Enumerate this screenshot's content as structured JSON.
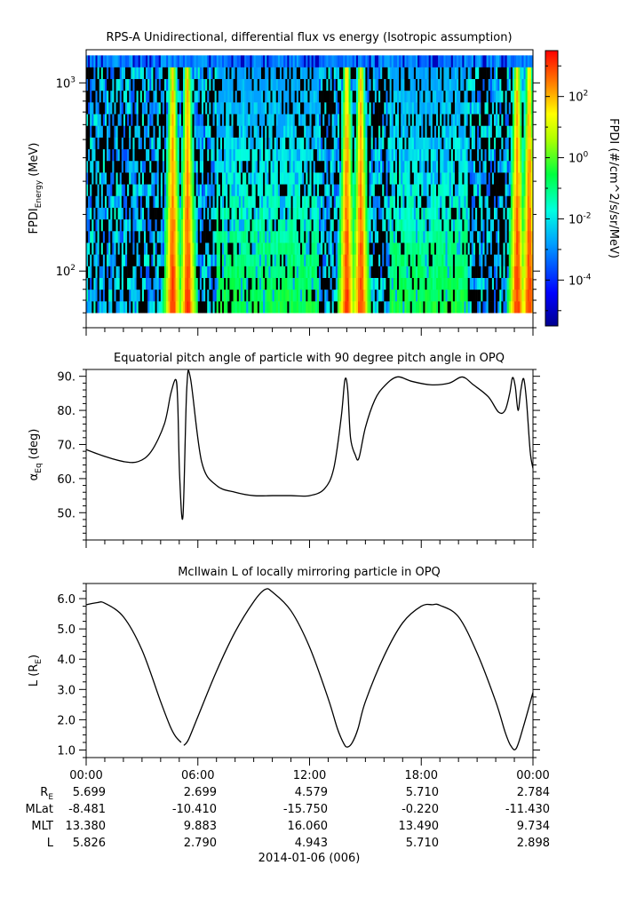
{
  "chart_data": [
    {
      "type": "heatmap",
      "title": "RPS-A Unidirectional, differential flux vs energy (Isotropic assumption)",
      "ylabel_main": "FPDI",
      "ylabel_sub": "Energy",
      "ylabel_unit": "(MeV)",
      "yscale": "log",
      "ylim": [
        50,
        1500
      ],
      "y_ticks": [
        {
          "value": 100,
          "base": "10",
          "exp": "2"
        },
        {
          "value": 1000,
          "base": "10",
          "exp": "3"
        }
      ],
      "energy_range": [
        60,
        1400
      ],
      "colorbar": {
        "label": "FPDI (#/cm^2/s/sr/MeV)",
        "log_range": [
          -5.5,
          3.5
        ],
        "ticks": [
          {
            "base": "10",
            "exp": "2",
            "log": 2
          },
          {
            "base": "10",
            "exp": "0",
            "log": 0
          },
          {
            "base": "10",
            "exp": "-2",
            "log": -2
          },
          {
            "base": "10",
            "exp": "-4",
            "log": -4
          }
        ]
      },
      "belt_passes_hours": [
        4.65,
        5.45,
        14.0,
        14.75,
        23.15,
        23.8
      ],
      "inner_zone_hours": [
        [
          7.0,
          12.5
        ],
        [
          16.3,
          20.5
        ]
      ],
      "colors": {
        "peak": "#ff8800",
        "high": "#ffe000",
        "mid": "#00ff40",
        "low": "#00ffe0",
        "sparse": "#0070ff",
        "noise": "#000000"
      }
    },
    {
      "type": "line",
      "title": "Equatorial pitch angle of particle with 90 degree pitch angle in OPQ",
      "ylabel_main": "α",
      "ylabel_sub": "Eq",
      "ylabel_unit": "(deg)",
      "ylim": [
        42,
        92
      ],
      "y_ticks": [
        90,
        80,
        70,
        60,
        50
      ],
      "x": [
        0,
        1,
        2,
        2.8,
        3.5,
        4.2,
        4.55,
        4.82,
        4.92,
        5.02,
        5.2,
        5.4,
        5.6,
        6.2,
        7,
        8,
        9,
        10,
        11,
        12,
        12.8,
        13.3,
        13.7,
        13.9,
        14.05,
        14.2,
        14.45,
        14.65,
        15,
        15.5,
        16,
        16.7,
        17.5,
        18.5,
        19.5,
        20.2,
        20.8,
        21.6,
        22.15,
        22.5,
        22.75,
        22.9,
        23.05,
        23.2,
        23.35,
        23.5,
        23.65,
        23.85,
        24.0
      ],
      "y": [
        68.5,
        66.5,
        65,
        65,
        68,
        76,
        85,
        89,
        82,
        61,
        49,
        86,
        89.5,
        65,
        58,
        56,
        55,
        55,
        55,
        55,
        57,
        63,
        78,
        89,
        86,
        72,
        67,
        66,
        75,
        83,
        87,
        89.8,
        88.5,
        87.5,
        88,
        89.8,
        87.5,
        84,
        79.5,
        80,
        85,
        89.6,
        87,
        80,
        86,
        89.3,
        83,
        68,
        63
      ]
    },
    {
      "type": "line",
      "title": "McIlwain L of locally mirroring particle in OPQ",
      "ylabel_main": "L (R",
      "ylabel_sub": "E",
      "ylabel_unit": ")",
      "ylim": [
        0.75,
        6.5
      ],
      "y_ticks": [
        6,
        5,
        4,
        3,
        2,
        1
      ],
      "segments": [
        {
          "x": [
            0,
            0.6,
            1,
            2,
            3,
            4,
            4.5,
            4.8,
            5.1
          ],
          "y": [
            5.8,
            5.87,
            5.85,
            5.4,
            4.3,
            2.6,
            1.8,
            1.45,
            1.25
          ]
        },
        {
          "x": [
            5.25,
            5.5,
            6,
            7,
            8,
            9,
            9.6,
            10,
            11,
            12,
            13,
            13.5,
            13.85,
            14.05,
            14.3,
            14.6,
            15,
            16,
            17,
            18,
            18.6,
            19,
            20,
            21,
            22,
            22.5,
            22.8,
            23.1,
            23.5,
            24.0
          ],
          "y": [
            1.15,
            1.35,
            2.1,
            3.6,
            4.9,
            5.9,
            6.3,
            6.22,
            5.6,
            4.4,
            2.7,
            1.7,
            1.2,
            1.1,
            1.25,
            1.7,
            2.6,
            4.1,
            5.2,
            5.75,
            5.8,
            5.78,
            5.4,
            4.2,
            2.6,
            1.6,
            1.15,
            1.05,
            1.8,
            2.9
          ]
        }
      ]
    }
  ],
  "x_axis": {
    "tick_labels": [
      "00:00",
      "06:00",
      "12:00",
      "18:00",
      "00:00"
    ],
    "date_label": "2014-01-06 (006)"
  },
  "ephemeris": {
    "labels": [
      {
        "main": "R",
        "sub": "E"
      },
      {
        "main": "MLat",
        "sub": ""
      },
      {
        "main": "MLT",
        "sub": ""
      },
      {
        "main": "L",
        "sub": ""
      }
    ],
    "rows": [
      [
        "5.699",
        "2.699",
        "4.579",
        "5.710",
        "2.784"
      ],
      [
        "-8.481",
        "-10.410",
        "-15.750",
        "-0.220",
        "-11.430"
      ],
      [
        "13.380",
        "9.883",
        "16.060",
        "13.490",
        "9.734"
      ],
      [
        "5.826",
        "2.790",
        "4.943",
        "5.710",
        "2.898"
      ]
    ]
  }
}
